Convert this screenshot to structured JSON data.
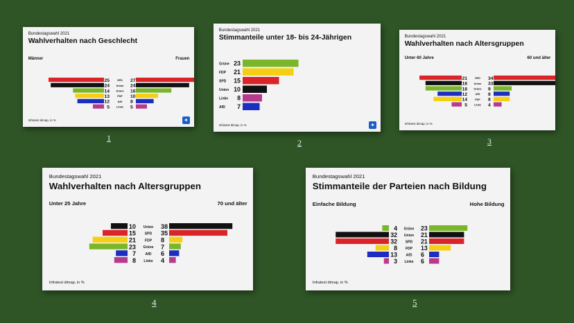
{
  "page": {
    "background": "#2f5426",
    "card_background": "#f3f3f3"
  },
  "party_colors": {
    "SPD": "#d9252a",
    "Union": "#111111",
    "Grüne": "#79b62a",
    "FDP": "#f5cf14",
    "AfD": "#1c2dbf",
    "Linke": "#b73a8d"
  },
  "cards": [
    {
      "number": "1",
      "header": "Bundestagswahl 2021",
      "title": "Wahlverhalten nach Geschlecht",
      "source": "Infratest dimap, in %",
      "has_logo": true,
      "chart_data": {
        "type": "bar",
        "layout": "diverging",
        "categories": [
          "SPD",
          "Union",
          "Grüne",
          "FDP",
          "AfD",
          "Linke"
        ],
        "series": [
          {
            "name": "Männer",
            "values": [
              25,
              24,
              14,
              13,
              12,
              5
            ]
          },
          {
            "name": "Frauen",
            "values": [
              27,
              24,
              16,
              10,
              8,
              5
            ]
          }
        ]
      }
    },
    {
      "number": "2",
      "header": "Bundestagswahl 2021",
      "title": "Stimmanteile unter 18- bis 24-Jährigen",
      "source": "Infratest dimap, in %",
      "has_logo": true,
      "chart_data": {
        "type": "bar",
        "layout": "single",
        "categories": [
          "Grüne",
          "FDP",
          "SPD",
          "Union",
          "Linke",
          "AfD"
        ],
        "series": [
          {
            "name": "",
            "values": [
              23,
              21,
              15,
              10,
              8,
              7
            ]
          }
        ]
      }
    },
    {
      "number": "3",
      "header": "Bundestagswahl 2021",
      "title": "Wahlverhalten nach Altersgruppen",
      "source": "Infratest dimap, in %",
      "has_logo": false,
      "chart_data": {
        "type": "bar",
        "layout": "diverging",
        "categories": [
          "SPD",
          "Union",
          "Grüne",
          "AfD",
          "FDP",
          "Linke"
        ],
        "series": [
          {
            "name": "Unter 60 Jahre",
            "values": [
              21,
              18,
              18,
              12,
              14,
              5
            ]
          },
          {
            "name": "60 und älter",
            "values": [
              34,
              33,
              9,
              8,
              8,
              4
            ]
          }
        ]
      }
    },
    {
      "number": "4",
      "header": "Bundestagswahl 2021",
      "title": "Wahlverhalten nach Altersgruppen",
      "source": "Infratest dimap, in %",
      "has_logo": false,
      "chart_data": {
        "type": "bar",
        "layout": "diverging",
        "categories": [
          "Union",
          "SPD",
          "FDP",
          "Grüne",
          "AfD",
          "Linke"
        ],
        "series": [
          {
            "name": "Unter 25 Jahre",
            "values": [
              10,
              15,
              21,
              23,
              7,
              8
            ]
          },
          {
            "name": "70 und älter",
            "values": [
              38,
              35,
              8,
              7,
              6,
              4
            ]
          }
        ]
      }
    },
    {
      "number": "5",
      "header": "Bundestagswahl 2021",
      "title": "Stimmanteile der Parteien nach Bildung",
      "source": "Infratest dimap, in %",
      "has_logo": false,
      "chart_data": {
        "type": "bar",
        "layout": "diverging",
        "categories": [
          "Grüne",
          "Union",
          "SPD",
          "FDP",
          "AfD",
          "Linke"
        ],
        "series": [
          {
            "name": "Einfache Bildung",
            "values": [
              4,
              32,
              32,
              8,
              13,
              3
            ]
          },
          {
            "name": "Hohe Bildung",
            "values": [
              23,
              21,
              21,
              13,
              6,
              6
            ]
          }
        ]
      }
    }
  ]
}
